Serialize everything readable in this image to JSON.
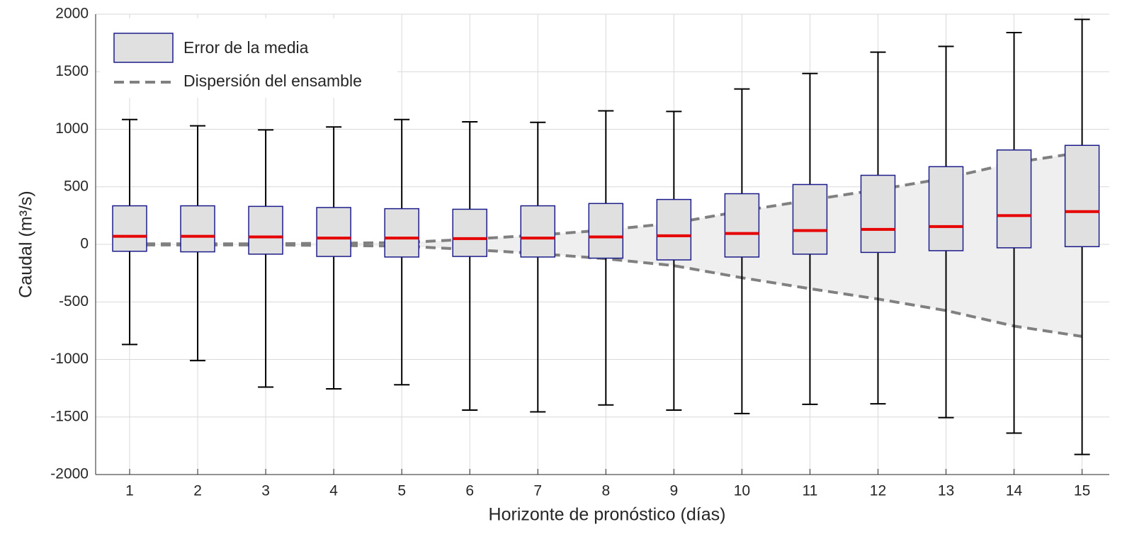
{
  "chart_data": {
    "type": "box",
    "xlabel": "Horizonte de pronóstico (días)",
    "ylabel": "Caudal (m³/s)",
    "x": [
      1,
      2,
      3,
      4,
      5,
      6,
      7,
      8,
      9,
      10,
      11,
      12,
      13,
      14,
      15
    ],
    "xlim": [
      0.5,
      15.4
    ],
    "xticks": [
      1,
      2,
      3,
      4,
      5,
      6,
      7,
      8,
      9,
      10,
      11,
      12,
      13,
      14,
      15
    ],
    "ylim": [
      -2000,
      2000
    ],
    "yticks": [
      -2000,
      -1500,
      -1000,
      -500,
      0,
      500,
      1000,
      1500,
      2000
    ],
    "grid": true,
    "legend": "upper left",
    "boxes": {
      "name": "Error de la media",
      "color": "#e0e0e0",
      "edge_color": "#1c1c8a",
      "median_color": "#e60000",
      "whisker_color": "#000000",
      "whisker_high": [
        1085,
        1030,
        995,
        1020,
        1085,
        1065,
        1060,
        1160,
        1155,
        1350,
        1485,
        1670,
        1720,
        1840,
        1955
      ],
      "q3": [
        335,
        335,
        330,
        320,
        310,
        305,
        335,
        355,
        390,
        440,
        520,
        600,
        675,
        820,
        860
      ],
      "median": [
        70,
        70,
        65,
        55,
        55,
        50,
        55,
        65,
        75,
        95,
        120,
        130,
        155,
        250,
        285
      ],
      "q1": [
        -60,
        -65,
        -85,
        -105,
        -110,
        -105,
        -110,
        -120,
        -135,
        -110,
        -85,
        -70,
        -55,
        -30,
        -20
      ],
      "whisker_low": [
        -870,
        -1010,
        -1240,
        -1255,
        -1220,
        -1440,
        -1455,
        -1395,
        -1440,
        -1470,
        -1390,
        -1385,
        -1505,
        -1640,
        -1825
      ]
    },
    "dispersion": {
      "name": "Dispersión del ensamble",
      "color": "#808080",
      "fill": "#efefef",
      "upper": [
        5,
        5,
        5,
        10,
        15,
        45,
        80,
        125,
        185,
        290,
        385,
        475,
        575,
        710,
        800
      ],
      "lower": [
        -5,
        -5,
        -5,
        -10,
        -15,
        -45,
        -80,
        -125,
        -185,
        -290,
        -385,
        -475,
        -575,
        -710,
        -800
      ]
    }
  }
}
